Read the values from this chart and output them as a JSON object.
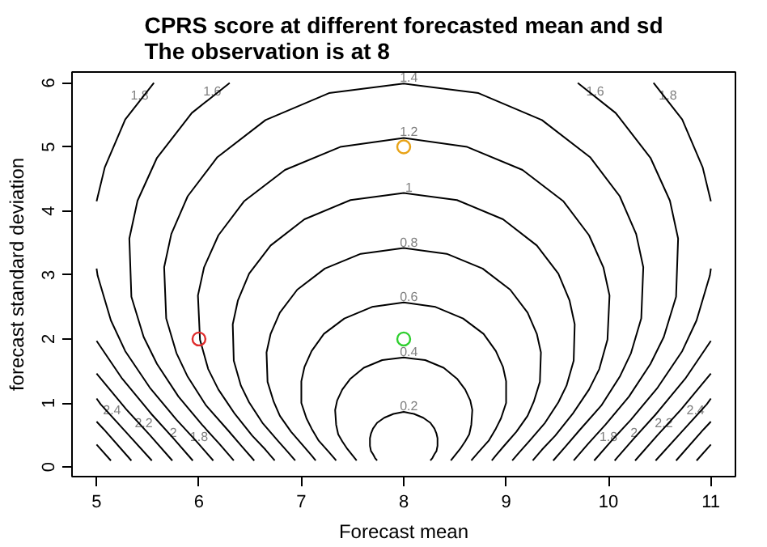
{
  "chart_data": {
    "type": "line",
    "title": "CPRS score at different forecasted mean and sd\nThe observation is at 8",
    "xlabel": "Forecast mean",
    "ylabel": "forecast standard deviation",
    "xlim": [
      4.76,
      11.24
    ],
    "ylim": [
      -0.15,
      6.17
    ],
    "xticks": [
      5,
      6,
      7,
      8,
      9,
      10,
      11
    ],
    "yticks": [
      0,
      1,
      2,
      3,
      4,
      5,
      6
    ],
    "grid": false,
    "line_style": "solid",
    "series": [
      {
        "color": "#000000",
        "x": [
          7.74,
          7.72,
          7.7,
          7.68,
          7.67,
          7.67,
          7.68,
          7.7,
          7.74,
          7.81,
          7.9,
          8.0,
          8.1,
          8.19,
          8.26,
          8.3,
          8.32,
          8.33,
          8.33,
          8.32,
          8.3,
          8.28,
          8.26
        ],
        "values": [
          0.1,
          0.14,
          0.2,
          0.25,
          0.33,
          0.45,
          0.52,
          0.6,
          0.69,
          0.77,
          0.83,
          0.86,
          0.83,
          0.77,
          0.69,
          0.6,
          0.52,
          0.45,
          0.33,
          0.25,
          0.2,
          0.14,
          0.1
        ]
      },
      {
        "color": "#000000",
        "x": [
          7.54,
          7.51,
          7.45,
          7.4,
          7.36,
          7.34,
          7.33,
          7.35,
          7.4,
          7.48,
          7.61,
          7.79,
          8.0,
          8.21,
          8.39,
          8.52,
          8.6,
          8.65,
          8.67,
          8.66,
          8.64,
          8.6,
          8.55,
          8.49,
          8.46
        ],
        "values": [
          0.1,
          0.16,
          0.28,
          0.4,
          0.51,
          0.66,
          0.89,
          1.04,
          1.21,
          1.38,
          1.55,
          1.67,
          1.71,
          1.67,
          1.55,
          1.38,
          1.21,
          1.04,
          0.89,
          0.66,
          0.51,
          0.4,
          0.28,
          0.16,
          0.1
        ]
      },
      {
        "color": "#000000",
        "x": [
          7.34,
          7.32,
          7.26,
          7.17,
          7.1,
          7.05,
          7.0,
          7.0,
          7.03,
          7.1,
          7.22,
          7.42,
          7.69,
          8.0,
          8.31,
          8.58,
          8.78,
          8.9,
          8.97,
          9.0,
          9.0,
          8.95,
          8.9,
          8.83,
          8.74,
          8.68,
          8.66
        ],
        "values": [
          0.1,
          0.14,
          0.25,
          0.41,
          0.6,
          0.76,
          1.0,
          1.34,
          1.56,
          1.81,
          2.08,
          2.32,
          2.5,
          2.57,
          2.5,
          2.32,
          2.08,
          1.81,
          1.56,
          1.34,
          1.0,
          0.76,
          0.6,
          0.41,
          0.25,
          0.14,
          0.1
        ]
      },
      {
        "color": "#000000",
        "x": [
          7.14,
          7.1,
          7.02,
          6.9,
          6.79,
          6.73,
          6.67,
          6.66,
          6.7,
          6.79,
          6.96,
          7.23,
          7.58,
          8.0,
          8.42,
          8.77,
          9.04,
          9.21,
          9.3,
          9.34,
          9.33,
          9.27,
          9.21,
          9.1,
          8.98,
          8.9,
          8.86
        ],
        "values": [
          0.1,
          0.18,
          0.33,
          0.55,
          0.8,
          1.02,
          1.33,
          1.79,
          2.08,
          2.41,
          2.77,
          3.1,
          3.33,
          3.42,
          3.33,
          3.1,
          2.77,
          2.41,
          2.08,
          1.79,
          1.33,
          1.02,
          0.8,
          0.55,
          0.33,
          0.18,
          0.1
        ]
      },
      {
        "color": "#000000",
        "x": [
          6.94,
          6.87,
          6.77,
          6.62,
          6.49,
          6.41,
          6.34,
          6.33,
          6.38,
          6.49,
          6.7,
          7.03,
          7.48,
          8.0,
          8.52,
          8.97,
          9.3,
          9.51,
          9.62,
          9.67,
          9.66,
          9.59,
          9.51,
          9.38,
          9.23,
          9.13,
          9.06
        ],
        "values": [
          0.1,
          0.23,
          0.41,
          0.69,
          1.01,
          1.27,
          1.66,
          2.23,
          2.6,
          3.02,
          3.46,
          3.87,
          4.17,
          4.28,
          4.17,
          3.87,
          3.46,
          3.02,
          2.6,
          2.23,
          1.66,
          1.27,
          1.01,
          0.69,
          0.41,
          0.23,
          0.1
        ]
      },
      {
        "color": "#000000",
        "x": [
          6.74,
          6.65,
          6.52,
          6.35,
          6.19,
          6.09,
          6.01,
          5.99,
          6.05,
          6.19,
          6.44,
          6.84,
          7.38,
          8.0,
          8.62,
          9.16,
          9.56,
          9.81,
          9.95,
          10.01,
          9.99,
          9.91,
          9.81,
          9.65,
          9.48,
          9.35,
          9.26
        ],
        "values": [
          0.1,
          0.27,
          0.49,
          0.83,
          1.21,
          1.53,
          1.99,
          2.68,
          3.12,
          3.62,
          4.15,
          4.64,
          5.0,
          5.14,
          5.0,
          4.64,
          4.15,
          3.62,
          3.12,
          2.68,
          1.99,
          1.53,
          1.21,
          0.83,
          0.49,
          0.27,
          0.1
        ]
      },
      {
        "color": "#000000",
        "x": [
          6.54,
          6.42,
          6.28,
          6.07,
          5.89,
          5.78,
          5.68,
          5.66,
          5.73,
          5.89,
          6.18,
          6.65,
          7.27,
          8.0,
          8.73,
          9.35,
          9.82,
          10.11,
          10.27,
          10.34,
          10.32,
          10.22,
          10.11,
          9.93,
          9.72,
          9.58,
          9.46
        ],
        "values": [
          0.1,
          0.32,
          0.58,
          0.96,
          1.41,
          1.78,
          2.32,
          3.12,
          3.64,
          4.23,
          4.84,
          5.42,
          5.84,
          5.99,
          5.84,
          5.42,
          4.84,
          4.23,
          3.64,
          3.12,
          2.32,
          1.78,
          1.41,
          0.96,
          0.58,
          0.32,
          0.1
        ]
      },
      {
        "color": "#000000",
        "x": [
          6.34,
          6.2,
          6.03,
          5.8,
          5.59,
          5.46,
          5.34,
          5.32,
          5.4,
          5.59,
          5.93,
          6.3
        ],
        "values": [
          0.1,
          0.36,
          0.66,
          1.1,
          1.61,
          2.03,
          2.66,
          3.57,
          4.16,
          4.83,
          5.53,
          6.0
        ]
      },
      {
        "color": "#000000",
        "x": [
          9.7,
          10.07,
          10.41,
          10.6,
          10.68,
          10.66,
          10.54,
          10.41,
          10.2,
          9.97,
          9.8,
          9.66
        ],
        "values": [
          6.0,
          5.53,
          4.83,
          4.16,
          3.57,
          2.66,
          2.03,
          1.61,
          1.1,
          0.66,
          0.36,
          0.1
        ]
      },
      {
        "color": "#000000",
        "x": [
          6.14,
          5.97,
          5.78,
          5.52,
          5.28,
          5.14,
          5.01,
          5.0
        ],
        "values": [
          0.1,
          0.41,
          0.74,
          1.24,
          1.81,
          2.29,
          2.99,
          3.1
        ]
      },
      {
        "color": "#000000",
        "x": [
          5.0,
          5.08,
          5.28,
          5.56
        ],
        "values": [
          4.15,
          4.68,
          5.43,
          6.0
        ]
      },
      {
        "color": "#000000",
        "x": [
          9.86,
          10.03,
          10.22,
          10.48,
          10.72,
          10.86,
          10.99,
          11.0
        ],
        "values": [
          0.1,
          0.41,
          0.74,
          1.24,
          1.81,
          2.29,
          2.99,
          3.1
        ]
      },
      {
        "color": "#000000",
        "x": [
          11.0,
          10.92,
          10.72,
          10.44
        ],
        "values": [
          4.15,
          4.68,
          5.43,
          6.0
        ]
      },
      {
        "color": "#000000",
        "x": [
          5.94,
          5.75,
          5.54,
          5.25,
          5.0
        ],
        "values": [
          0.1,
          0.45,
          0.82,
          1.38,
          1.97
        ]
      },
      {
        "color": "#000000",
        "x": [
          10.06,
          10.25,
          10.46,
          10.75,
          11.0
        ],
        "values": [
          0.1,
          0.45,
          0.82,
          1.38,
          1.97
        ]
      },
      {
        "color": "#000000",
        "x": [
          5.74,
          5.52,
          5.29,
          5.0
        ],
        "values": [
          0.1,
          0.5,
          0.9,
          1.46
        ]
      },
      {
        "color": "#000000",
        "x": [
          10.26,
          10.48,
          10.71,
          11.0
        ],
        "values": [
          0.1,
          0.5,
          0.9,
          1.46
        ]
      },
      {
        "color": "#000000",
        "x": [
          5.54,
          5.29,
          5.04,
          5.0
        ],
        "values": [
          0.1,
          0.54,
          0.98,
          1.07
        ]
      },
      {
        "color": "#000000",
        "x": [
          10.46,
          10.71,
          10.96,
          11.0
        ],
        "values": [
          0.1,
          0.54,
          0.98,
          1.07
        ]
      },
      {
        "color": "#000000",
        "x": [
          5.34,
          5.07,
          5.0
        ],
        "values": [
          0.1,
          0.59,
          0.71
        ]
      },
      {
        "color": "#000000",
        "x": [
          10.66,
          10.93,
          11.0
        ],
        "values": [
          0.1,
          0.59,
          0.71
        ]
      },
      {
        "color": "#000000",
        "x": [
          5.14,
          5.0
        ],
        "values": [
          0.1,
          0.35
        ]
      },
      {
        "color": "#000000",
        "x": [
          10.86,
          11.0
        ],
        "values": [
          0.1,
          0.35
        ]
      },
      {
        "type": "scatter",
        "marker": "circle",
        "color": "#df2b2b",
        "x": [
          6
        ],
        "values": [
          2
        ]
      },
      {
        "type": "scatter",
        "marker": "circle",
        "color": "#e8a317",
        "x": [
          8
        ],
        "values": [
          5
        ]
      },
      {
        "type": "scatter",
        "marker": "circle",
        "color": "#2fcf2f",
        "x": [
          8
        ],
        "values": [
          2
        ]
      }
    ],
    "annotations": [
      {
        "text": "0.2",
        "x": 8.05,
        "y": 0.86
      },
      {
        "text": "0.4",
        "x": 8.05,
        "y": 1.71
      },
      {
        "text": "0.6",
        "x": 8.05,
        "y": 2.57
      },
      {
        "text": "0.8",
        "x": 8.05,
        "y": 3.42
      },
      {
        "text": "1",
        "x": 8.05,
        "y": 4.28
      },
      {
        "text": "1.2",
        "x": 8.05,
        "y": 5.14
      },
      {
        "text": "1.4",
        "x": 8.05,
        "y": 5.99
      },
      {
        "text": "1.6",
        "x": 6.13,
        "y": 5.78
      },
      {
        "text": "1.8",
        "x": 5.42,
        "y": 5.72
      },
      {
        "text": "1.6",
        "x": 9.87,
        "y": 5.78
      },
      {
        "text": "1.8",
        "x": 10.58,
        "y": 5.72
      },
      {
        "text": "2.4",
        "x": 5.15,
        "y": 0.8
      },
      {
        "text": "2.2",
        "x": 5.46,
        "y": 0.6
      },
      {
        "text": "2",
        "x": 5.75,
        "y": 0.45
      },
      {
        "text": "1.8",
        "x": 6.0,
        "y": 0.38
      },
      {
        "text": "1.8",
        "x": 10.0,
        "y": 0.38
      },
      {
        "text": "2",
        "x": 10.25,
        "y": 0.45
      },
      {
        "text": "2.2",
        "x": 10.54,
        "y": 0.6
      },
      {
        "text": "2.4",
        "x": 10.85,
        "y": 0.8
      }
    ]
  }
}
